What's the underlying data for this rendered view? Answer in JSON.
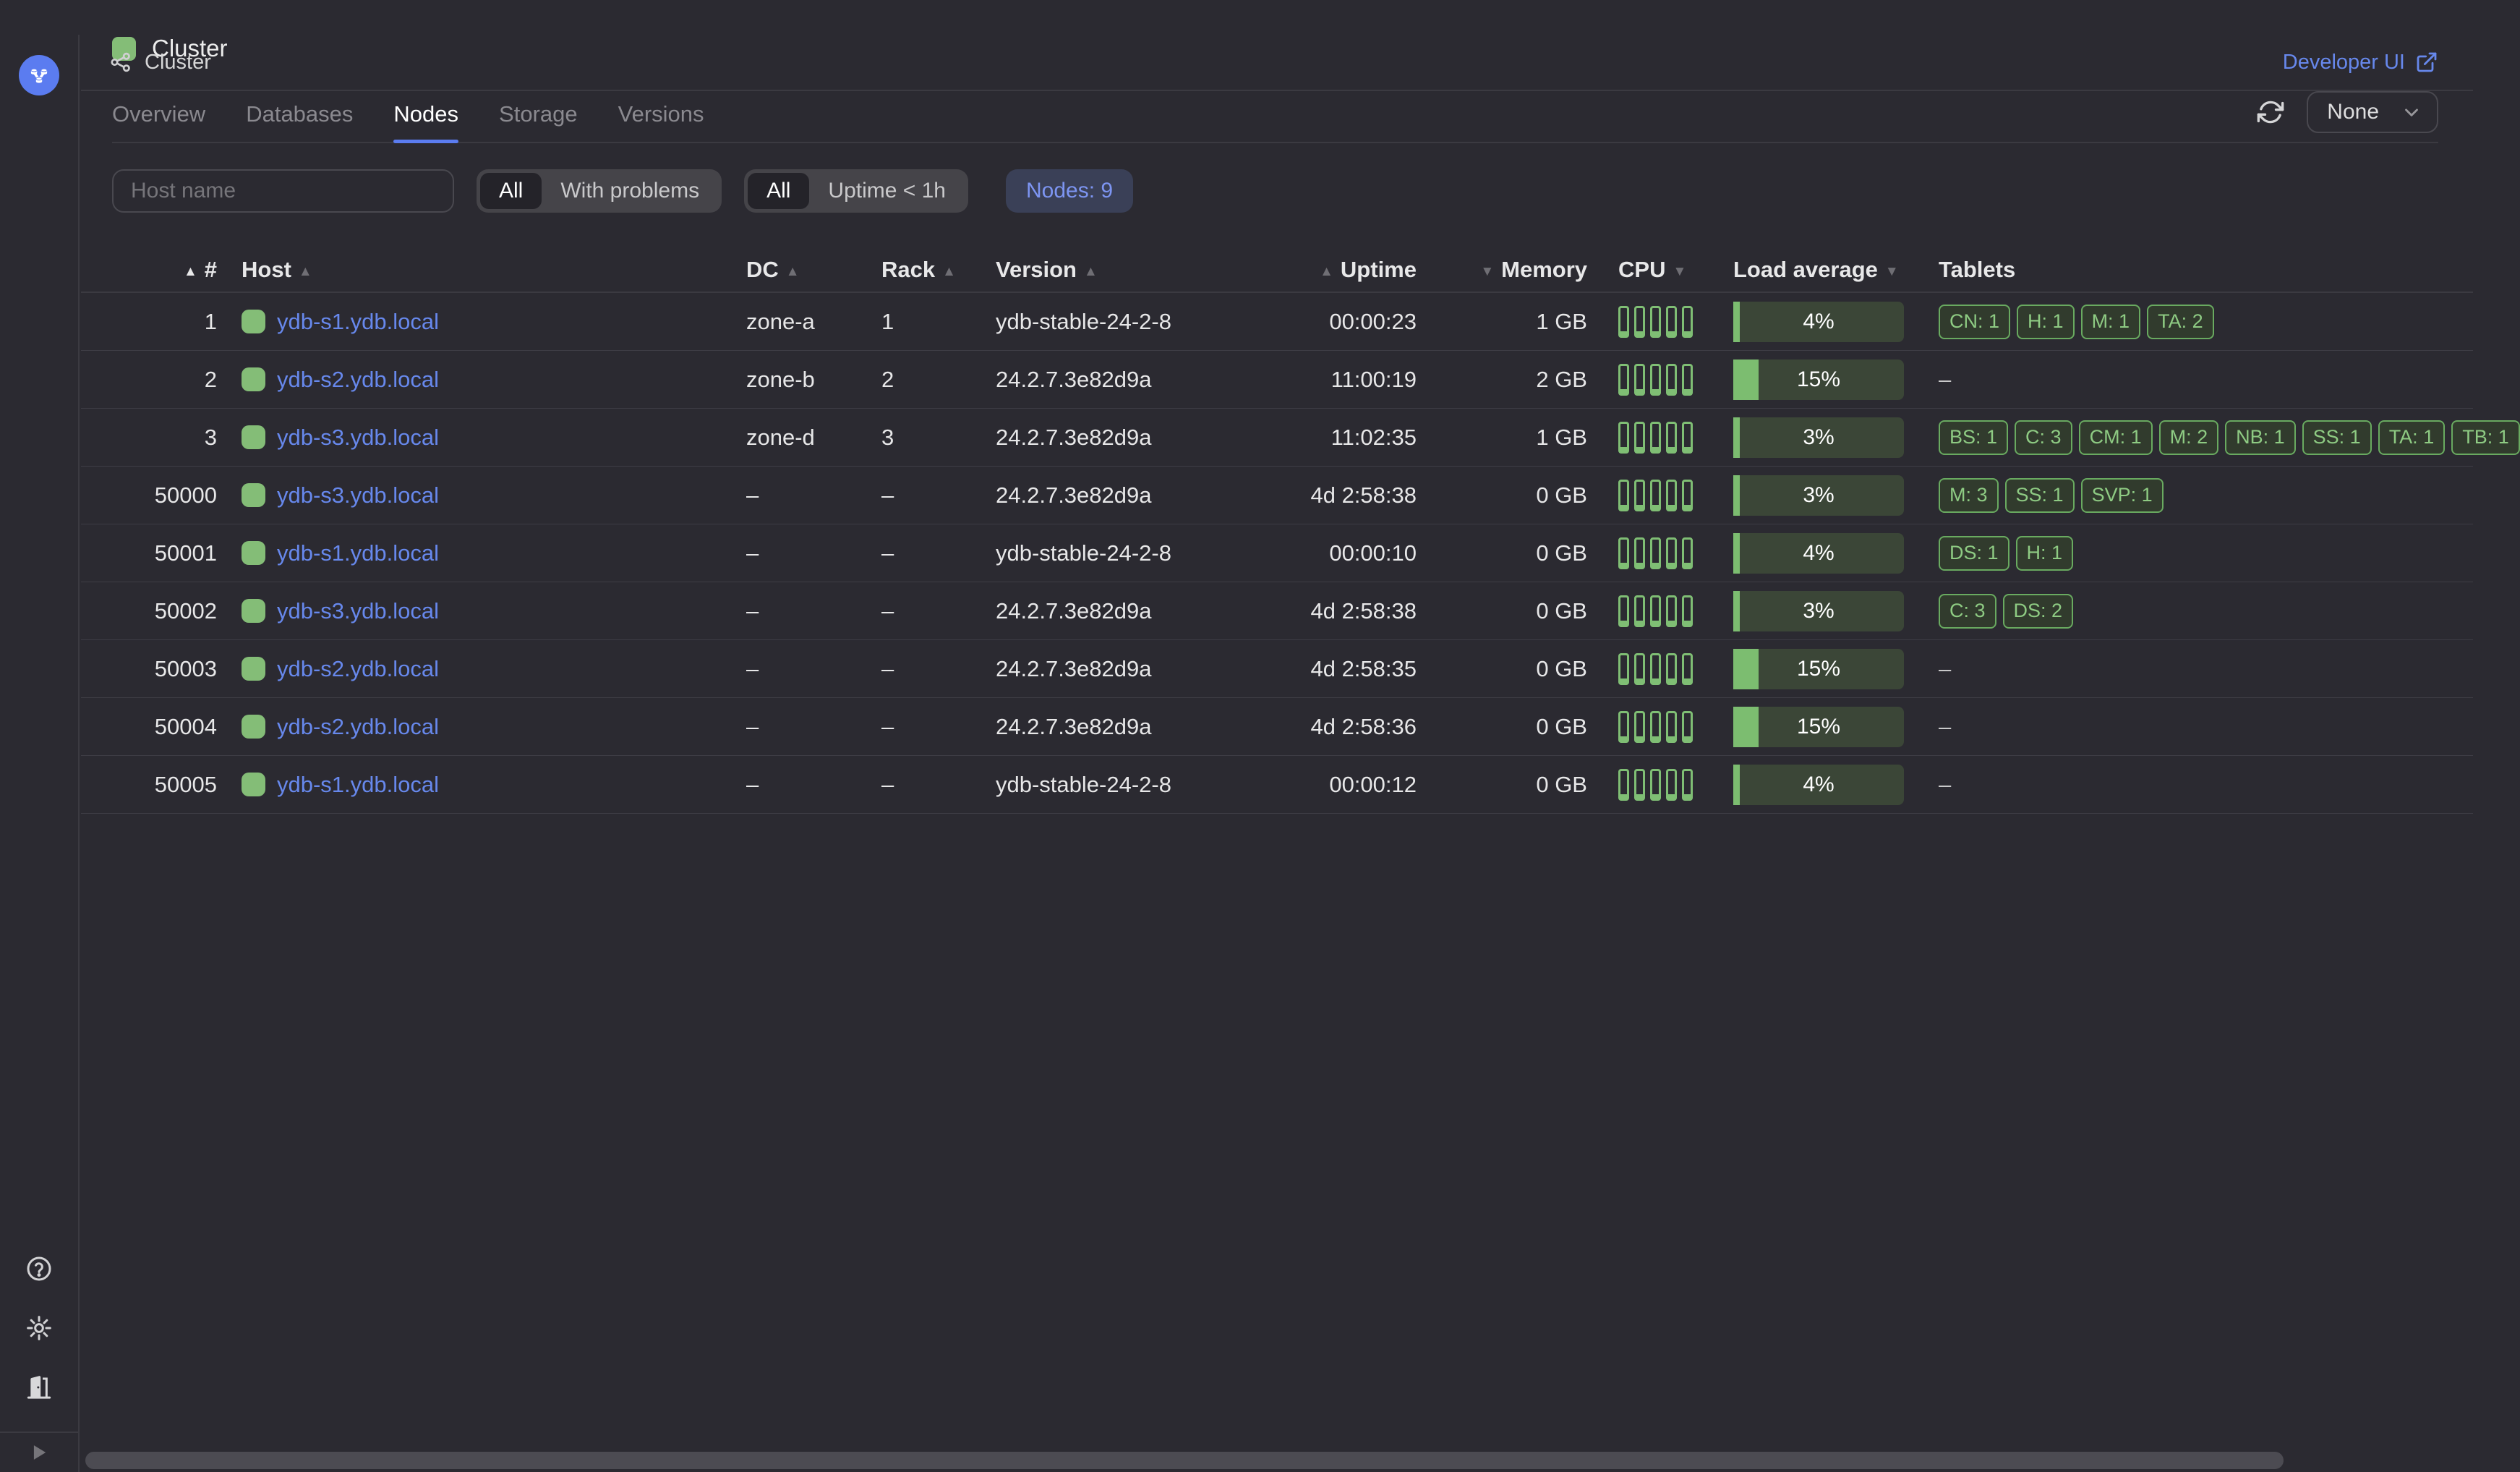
{
  "header": {
    "breadcrumb": "Cluster",
    "developer_ui_label": "Developer UI"
  },
  "page": {
    "title": "Cluster"
  },
  "tabs": [
    {
      "label": "Overview",
      "active": false
    },
    {
      "label": "Databases",
      "active": false
    },
    {
      "label": "Nodes",
      "active": true
    },
    {
      "label": "Storage",
      "active": false
    },
    {
      "label": "Versions",
      "active": false
    }
  ],
  "controls": {
    "autorefresh_label": "None"
  },
  "filters": {
    "host_placeholder": "Host name",
    "problem_filter": {
      "options": [
        "All",
        "With problems"
      ],
      "selected": "All"
    },
    "uptime_filter": {
      "options": [
        "All",
        "Uptime < 1h"
      ],
      "selected": "All"
    },
    "count_badge": "Nodes: 9"
  },
  "table": {
    "columns": [
      {
        "key": "num",
        "label": "#",
        "align": "right",
        "sort": "asc",
        "sort_active": true,
        "arrow_before": true
      },
      {
        "key": "host",
        "label": "Host",
        "align": "left",
        "sort": "asc",
        "sort_active": false,
        "arrow_before": false
      },
      {
        "key": "dc",
        "label": "DC",
        "align": "left",
        "sort": "asc",
        "sort_active": false,
        "arrow_before": false
      },
      {
        "key": "rack",
        "label": "Rack",
        "align": "left",
        "sort": "asc",
        "sort_active": false,
        "arrow_before": false
      },
      {
        "key": "version",
        "label": "Version",
        "align": "left",
        "sort": "asc",
        "sort_active": false,
        "arrow_before": false
      },
      {
        "key": "uptime",
        "label": "Uptime",
        "align": "right",
        "sort": "asc",
        "sort_active": false,
        "arrow_before": true
      },
      {
        "key": "memory",
        "label": "Memory",
        "align": "right",
        "sort": "desc",
        "sort_active": false,
        "arrow_before": true
      },
      {
        "key": "cpu",
        "label": "CPU",
        "align": "left",
        "sort": "desc",
        "sort_active": false,
        "arrow_before": false
      },
      {
        "key": "load",
        "label": "Load average",
        "align": "left",
        "sort": "desc",
        "sort_active": false,
        "arrow_before": false
      },
      {
        "key": "tablets",
        "label": "Tablets",
        "align": "left",
        "sort": null,
        "sort_active": false,
        "arrow_before": false
      }
    ],
    "empty_value": "–",
    "rows": [
      {
        "num": "1",
        "host": "ydb-s1.ydb.local",
        "dc": "zone-a",
        "rack": "1",
        "version": "ydb-stable-24-2-8",
        "uptime": "00:00:23",
        "memory": "1 GB",
        "cpu_cores": 5,
        "load_pct": 4,
        "load_label": "4%",
        "tablets": [
          "CN: 1",
          "H: 1",
          "M: 1",
          "TA: 2"
        ]
      },
      {
        "num": "2",
        "host": "ydb-s2.ydb.local",
        "dc": "zone-b",
        "rack": "2",
        "version": "24.2.7.3e82d9a",
        "uptime": "11:00:19",
        "memory": "2 GB",
        "cpu_cores": 5,
        "load_pct": 15,
        "load_label": "15%",
        "tablets": null
      },
      {
        "num": "3",
        "host": "ydb-s3.ydb.local",
        "dc": "zone-d",
        "rack": "3",
        "version": "24.2.7.3e82d9a",
        "uptime": "11:02:35",
        "memory": "1 GB",
        "cpu_cores": 5,
        "load_pct": 3,
        "load_label": "3%",
        "tablets": [
          "BS: 1",
          "C: 3",
          "CM: 1",
          "M: 2",
          "NB: 1",
          "SS: 1",
          "TA: 1",
          "TB: 1"
        ]
      },
      {
        "num": "50000",
        "host": "ydb-s3.ydb.local",
        "dc": "–",
        "rack": "–",
        "version": "24.2.7.3e82d9a",
        "uptime": "4d 2:58:38",
        "memory": "0 GB",
        "cpu_cores": 5,
        "load_pct": 3,
        "load_label": "3%",
        "tablets": [
          "M: 3",
          "SS: 1",
          "SVP: 1"
        ]
      },
      {
        "num": "50001",
        "host": "ydb-s1.ydb.local",
        "dc": "–",
        "rack": "–",
        "version": "ydb-stable-24-2-8",
        "uptime": "00:00:10",
        "memory": "0 GB",
        "cpu_cores": 5,
        "load_pct": 4,
        "load_label": "4%",
        "tablets": [
          "DS: 1",
          "H: 1"
        ]
      },
      {
        "num": "50002",
        "host": "ydb-s3.ydb.local",
        "dc": "–",
        "rack": "–",
        "version": "24.2.7.3e82d9a",
        "uptime": "4d 2:58:38",
        "memory": "0 GB",
        "cpu_cores": 5,
        "load_pct": 3,
        "load_label": "3%",
        "tablets": [
          "C: 3",
          "DS: 2"
        ]
      },
      {
        "num": "50003",
        "host": "ydb-s2.ydb.local",
        "dc": "–",
        "rack": "–",
        "version": "24.2.7.3e82d9a",
        "uptime": "4d 2:58:35",
        "memory": "0 GB",
        "cpu_cores": 5,
        "load_pct": 15,
        "load_label": "15%",
        "tablets": null
      },
      {
        "num": "50004",
        "host": "ydb-s2.ydb.local",
        "dc": "–",
        "rack": "–",
        "version": "24.2.7.3e82d9a",
        "uptime": "4d 2:58:36",
        "memory": "0 GB",
        "cpu_cores": 5,
        "load_pct": 15,
        "load_label": "15%",
        "tablets": null
      },
      {
        "num": "50005",
        "host": "ydb-s1.ydb.local",
        "dc": "–",
        "rack": "–",
        "version": "ydb-stable-24-2-8",
        "uptime": "00:00:12",
        "memory": "0 GB",
        "cpu_cores": 5,
        "load_pct": 4,
        "load_label": "4%",
        "tablets": null
      }
    ]
  },
  "sidebar_icons": [
    "help-icon",
    "gear-icon",
    "logout-icon",
    "expand-icon"
  ],
  "colors": {
    "accent_blue": "#5b7cf0",
    "link_blue": "#6788ec",
    "status_green": "#84bd77",
    "cpu_bar_green": "#7fbe74",
    "load_fill_green": "#7cbd70",
    "load_track_green": "#3b4637",
    "badge_border_green": "#69aa60",
    "badge_text_green": "#8ecb83",
    "count_badge_bg": "#3a4057",
    "count_badge_text": "#7d95f2"
  }
}
